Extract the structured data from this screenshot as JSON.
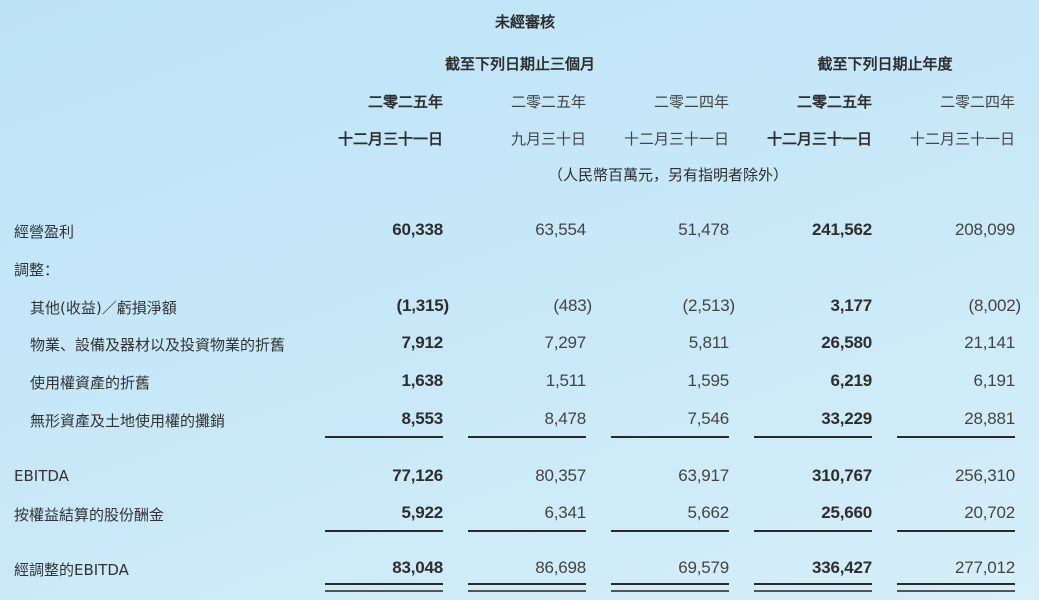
{
  "header": {
    "audit_status": "未經審核",
    "group_quarter": "截至下列日期止三個月",
    "group_year": "截至下列日期止年度",
    "columns": [
      {
        "year": "二零二五年",
        "date": "十二月三十一日",
        "bold": true
      },
      {
        "year": "二零二五年",
        "date": "九月三十日",
        "bold": false
      },
      {
        "year": "二零二四年",
        "date": "十二月三十一日",
        "bold": false
      },
      {
        "year": "二零二五年",
        "date": "十二月三十一日",
        "bold": true
      },
      {
        "year": "二零二四年",
        "date": "十二月三十一日",
        "bold": false
      }
    ],
    "units": "（人民幣百萬元，另有指明者除外）"
  },
  "rows": [
    {
      "label": "經營盈利",
      "values": [
        "60,338",
        "63,554",
        "51,478",
        "241,562",
        "208,099"
      ]
    },
    {
      "label": "調整：",
      "values": [
        "",
        "",
        "",
        "",
        ""
      ]
    },
    {
      "label": "其他(收益)／虧損淨額",
      "values": [
        "(1,315)",
        "(483)",
        "(2,513)",
        "3,177",
        "(8,002)"
      ]
    },
    {
      "label": "物業、設備及器材以及投資物業的折舊",
      "values": [
        "7,912",
        "7,297",
        "5,811",
        "26,580",
        "21,141"
      ]
    },
    {
      "label": "使用權資產的折舊",
      "values": [
        "1,638",
        "1,511",
        "1,595",
        "6,219",
        "6,191"
      ]
    },
    {
      "label": "無形資產及土地使用權的攤銷",
      "values": [
        "8,553",
        "8,478",
        "7,546",
        "33,229",
        "28,881"
      ]
    },
    {
      "label": "EBITDA",
      "values": [
        "77,126",
        "80,357",
        "63,917",
        "310,767",
        "256,310"
      ]
    },
    {
      "label": "按權益結算的股份酬金",
      "values": [
        "5,922",
        "6,341",
        "5,662",
        "25,660",
        "20,702"
      ]
    },
    {
      "label": "經調整的EBITDA",
      "values": [
        "83,048",
        "86,698",
        "69,579",
        "336,427",
        "277,012"
      ]
    }
  ]
}
